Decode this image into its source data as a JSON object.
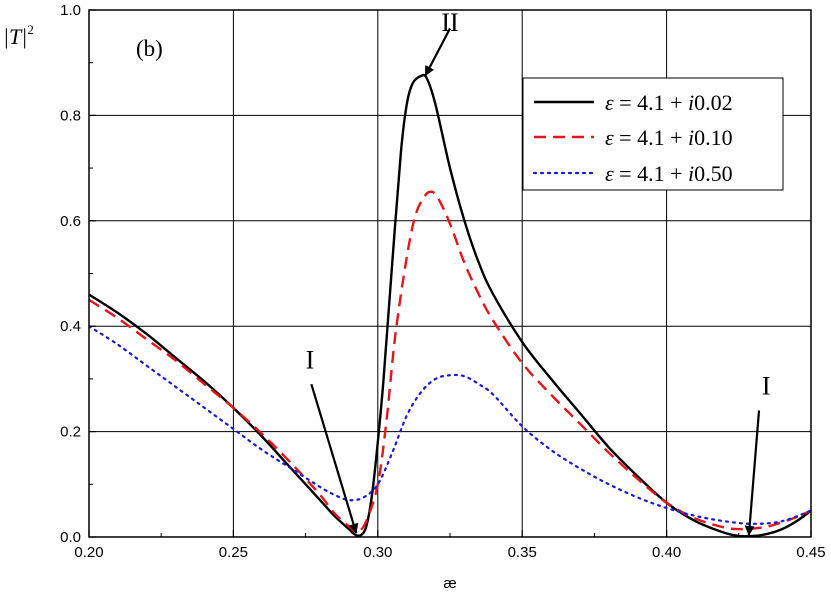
{
  "chart_data": {
    "type": "line",
    "panel_label": "(b)",
    "ylabel": "|T|",
    "ylabel_sup": "2",
    "xlabel": "æ",
    "xlim": [
      0.2,
      0.45
    ],
    "ylim": [
      0.0,
      1.0
    ],
    "xticks": [
      "0.20",
      "0.25",
      "0.30",
      "0.35",
      "0.40",
      "0.45"
    ],
    "yticks": [
      "0.0",
      "0.2",
      "0.4",
      "0.6",
      "0.8",
      "1.0"
    ],
    "grid": true,
    "legend_position": "top-right",
    "series": [
      {
        "name": "ε = 4.1 + i0.02",
        "name_parts": {
          "sym": "ε",
          "mid": " = 4.1 + ",
          "i": "i",
          "val": "0.02"
        },
        "style": "solid",
        "color": "#000000",
        "x": [
          0.2,
          0.21,
          0.22,
          0.23,
          0.24,
          0.25,
          0.26,
          0.27,
          0.28,
          0.285,
          0.29,
          0.292,
          0.294,
          0.296,
          0.298,
          0.3,
          0.302,
          0.305,
          0.308,
          0.31,
          0.312,
          0.315,
          0.317,
          0.32,
          0.325,
          0.33,
          0.335,
          0.34,
          0.35,
          0.36,
          0.37,
          0.38,
          0.39,
          0.4,
          0.41,
          0.42,
          0.425,
          0.43,
          0.435,
          0.44,
          0.445,
          0.45
        ],
        "y": [
          0.46,
          0.425,
          0.385,
          0.34,
          0.295,
          0.245,
          0.19,
          0.13,
          0.07,
          0.04,
          0.015,
          0.005,
          0.003,
          0.02,
          0.08,
          0.18,
          0.3,
          0.52,
          0.73,
          0.82,
          0.86,
          0.875,
          0.87,
          0.82,
          0.7,
          0.6,
          0.52,
          0.46,
          0.37,
          0.3,
          0.235,
          0.17,
          0.115,
          0.065,
          0.03,
          0.008,
          0.002,
          0.002,
          0.006,
          0.015,
          0.03,
          0.05
        ]
      },
      {
        "name": "ε = 4.1 + i0.10",
        "name_parts": {
          "sym": "ε",
          "mid": " = 4.1 + ",
          "i": "i",
          "val": "0.10"
        },
        "style": "dashed",
        "color": "#e8141b",
        "x": [
          0.2,
          0.21,
          0.22,
          0.23,
          0.24,
          0.25,
          0.26,
          0.27,
          0.28,
          0.285,
          0.29,
          0.293,
          0.296,
          0.3,
          0.303,
          0.306,
          0.31,
          0.313,
          0.316,
          0.318,
          0.32,
          0.323,
          0.326,
          0.33,
          0.335,
          0.34,
          0.35,
          0.36,
          0.37,
          0.38,
          0.39,
          0.4,
          0.41,
          0.42,
          0.425,
          0.43,
          0.435,
          0.44,
          0.445,
          0.45
        ],
        "y": [
          0.45,
          0.415,
          0.375,
          0.335,
          0.29,
          0.245,
          0.195,
          0.14,
          0.08,
          0.045,
          0.02,
          0.01,
          0.03,
          0.1,
          0.22,
          0.38,
          0.53,
          0.61,
          0.645,
          0.655,
          0.65,
          0.62,
          0.58,
          0.52,
          0.46,
          0.41,
          0.33,
          0.27,
          0.215,
          0.16,
          0.11,
          0.065,
          0.035,
          0.018,
          0.015,
          0.016,
          0.02,
          0.028,
          0.038,
          0.05
        ]
      },
      {
        "name": "ε = 4.1 + i0.50",
        "name_parts": {
          "sym": "ε",
          "mid": " = 4.1 + ",
          "i": "i",
          "val": "0.50"
        },
        "style": "dotted",
        "color": "#1a1ad6",
        "x": [
          0.2,
          0.21,
          0.22,
          0.23,
          0.24,
          0.25,
          0.26,
          0.27,
          0.28,
          0.285,
          0.29,
          0.295,
          0.3,
          0.305,
          0.31,
          0.315,
          0.32,
          0.325,
          0.33,
          0.335,
          0.34,
          0.35,
          0.36,
          0.37,
          0.38,
          0.39,
          0.4,
          0.41,
          0.42,
          0.43,
          0.44,
          0.45
        ],
        "y": [
          0.4,
          0.365,
          0.325,
          0.285,
          0.245,
          0.205,
          0.165,
          0.13,
          0.095,
          0.08,
          0.07,
          0.075,
          0.1,
          0.16,
          0.23,
          0.275,
          0.3,
          0.307,
          0.305,
          0.29,
          0.27,
          0.21,
          0.165,
          0.13,
          0.1,
          0.075,
          0.055,
          0.04,
          0.03,
          0.025,
          0.03,
          0.05
        ]
      }
    ],
    "annotations": [
      {
        "label": "II",
        "x": 0.322,
        "y": 0.96,
        "arrow_from": [
          0.325,
          0.965
        ],
        "arrow_to": [
          0.3165,
          0.876
        ]
      },
      {
        "label": "I",
        "x": 0.275,
        "y": 0.32,
        "arrow_from": [
          0.277,
          0.29
        ],
        "arrow_to": [
          0.2925,
          0.008
        ]
      },
      {
        "label": "I",
        "x": 0.433,
        "y": 0.27,
        "arrow_from": [
          0.432,
          0.24
        ],
        "arrow_to": [
          0.4285,
          0.004
        ]
      }
    ]
  }
}
